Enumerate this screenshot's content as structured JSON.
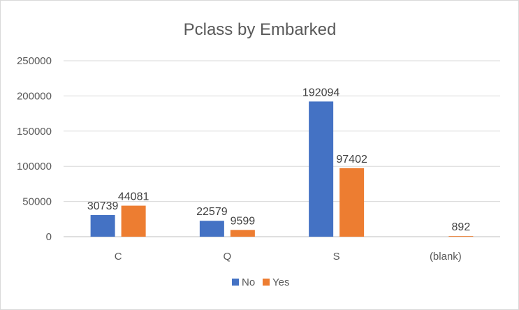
{
  "chart_data": {
    "type": "bar",
    "title": "Pclass by Embarked",
    "categories": [
      "C",
      "Q",
      "S",
      "(blank)"
    ],
    "series": [
      {
        "name": "No",
        "color": "#4472C4",
        "values": [
          30739,
          22579,
          192094,
          null
        ]
      },
      {
        "name": "Yes",
        "color": "#ED7D31",
        "values": [
          44081,
          9599,
          97402,
          892
        ]
      }
    ],
    "data_labels": [
      [
        "30739",
        "22579",
        "192094",
        ""
      ],
      [
        "44081",
        "9599",
        "97402",
        "892"
      ]
    ],
    "ylim": [
      0,
      250000
    ],
    "yticks": [
      0,
      50000,
      100000,
      150000,
      200000,
      250000
    ],
    "ytick_labels": [
      "0",
      "50000",
      "100000",
      "150000",
      "200000",
      "250000"
    ],
    "grid": true,
    "legend_position": "bottom",
    "xlabel": "",
    "ylabel": ""
  }
}
